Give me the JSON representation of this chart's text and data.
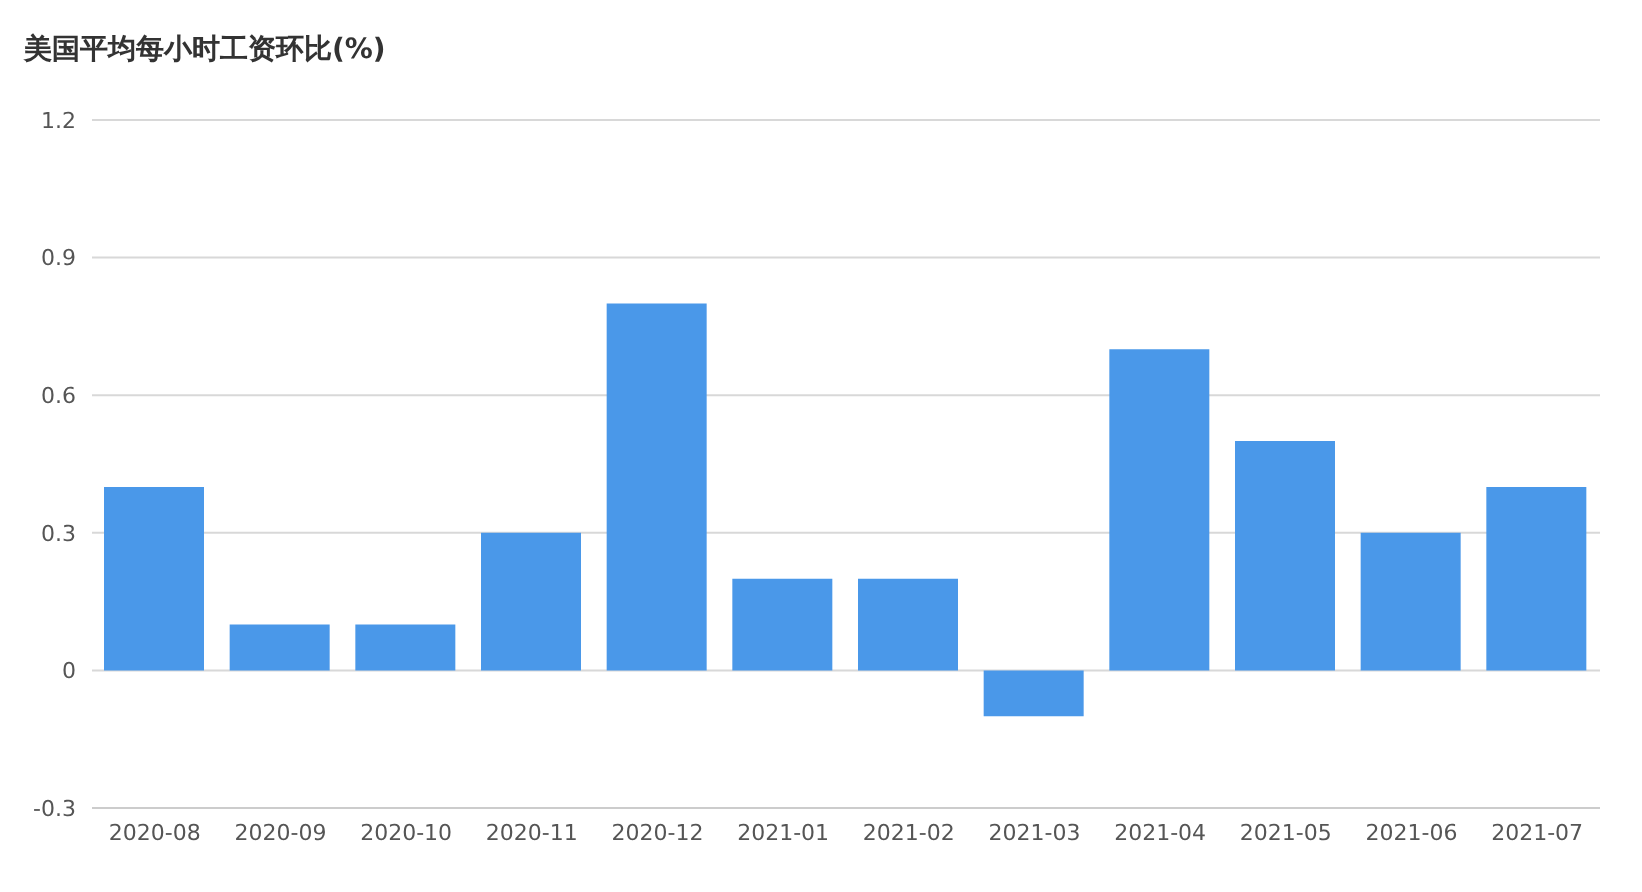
{
  "chart_data": {
    "type": "bar",
    "title": "美国平均每小时工资环比(%)",
    "categories": [
      "2020-08",
      "2020-09",
      "2020-10",
      "2020-11",
      "2020-12",
      "2021-01",
      "2021-02",
      "2021-03",
      "2021-04",
      "2021-05",
      "2021-06",
      "2021-07"
    ],
    "values": [
      0.4,
      0.1,
      0.1,
      0.3,
      0.8,
      0.2,
      0.2,
      -0.1,
      0.7,
      0.5,
      0.3,
      0.4
    ],
    "color": "#4a98e9",
    "ylim": [
      -0.3,
      1.2
    ],
    "yticks": [
      -0.3,
      0,
      0.3,
      0.6,
      0.9,
      1.2
    ],
    "grid": "y"
  }
}
